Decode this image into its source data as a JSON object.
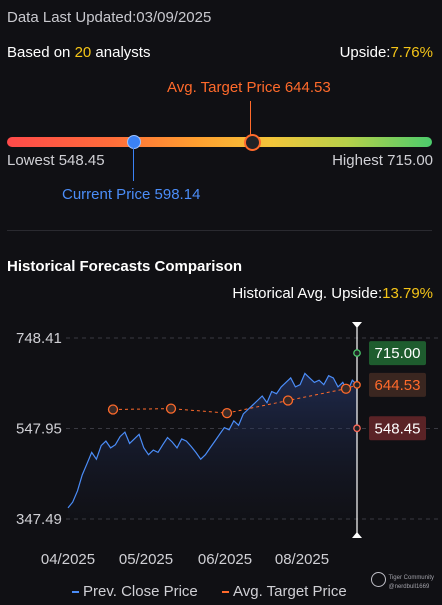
{
  "header": {
    "updated_label": "Data Last Updated:",
    "updated_date": "03/09/2025",
    "based_prefix": "Based on ",
    "analysts_count": "20",
    "based_suffix": " analysts",
    "upside_label": "Upside:",
    "upside_value": "7.76%"
  },
  "range": {
    "avg_target_label": "Avg. Target Price 644.53",
    "lowest_label": "Lowest 548.45",
    "highest_label": "Highest 715.00",
    "current_label": "Current Price 598.14",
    "lowest": 548.45,
    "highest": 715.0,
    "current": 598.14,
    "avg_target": 644.53,
    "colors": {
      "current": "#3b82f6",
      "avg": "#ff6a2b",
      "high": "#1e5c2e",
      "low": "#5a2326"
    }
  },
  "history": {
    "title": "Historical Forecasts Comparison",
    "avg_upside_label": "Historical Avg. Upside:",
    "avg_upside_value": "13.79%"
  },
  "chart_data": {
    "type": "line",
    "y_ticks": [
      "748.41",
      "547.95",
      "347.49"
    ],
    "ylim": [
      347.49,
      748.41
    ],
    "x_ticks": [
      "04/2025",
      "05/2025",
      "06/2025",
      "08/2025"
    ],
    "series": [
      {
        "name": "Prev. Close Price",
        "color": "#4b8df8",
        "values": [
          372,
          385,
          410,
          445,
          470,
          495,
          480,
          510,
          520,
          505,
          512,
          530,
          540,
          515,
          525,
          535,
          505,
          490,
          500,
          495,
          512,
          528,
          518,
          505,
          525,
          520,
          508,
          495,
          480,
          490,
          505,
          520,
          535,
          550,
          545,
          565,
          555,
          580,
          590,
          600,
          610,
          620,
          605,
          630,
          625,
          640,
          650,
          660,
          640,
          645,
          670,
          660,
          650,
          655,
          645,
          665,
          660,
          640,
          650,
          630,
          655,
          645
        ]
      },
      {
        "name": "Avg. Target Price",
        "color": "#ff6a2b",
        "values": [
          590,
          592,
          582,
          610,
          636,
          644.53
        ]
      }
    ],
    "end_labels": [
      {
        "text": "715.00",
        "value": 715.0,
        "bg": "#1e5c2e",
        "fg": "#ffffff"
      },
      {
        "text": "644.53",
        "value": 644.53,
        "bg": "#3a2620",
        "fg": "#ff6a2b"
      },
      {
        "text": "548.45",
        "value": 548.45,
        "bg": "#5a2326",
        "fg": "#ffffff"
      }
    ]
  },
  "legend": {
    "prev_close": "Prev. Close Price",
    "avg_target": "Avg. Target Price"
  },
  "watermark": {
    "line1": "Tiger Community",
    "line2": "@nerdbull1669"
  }
}
